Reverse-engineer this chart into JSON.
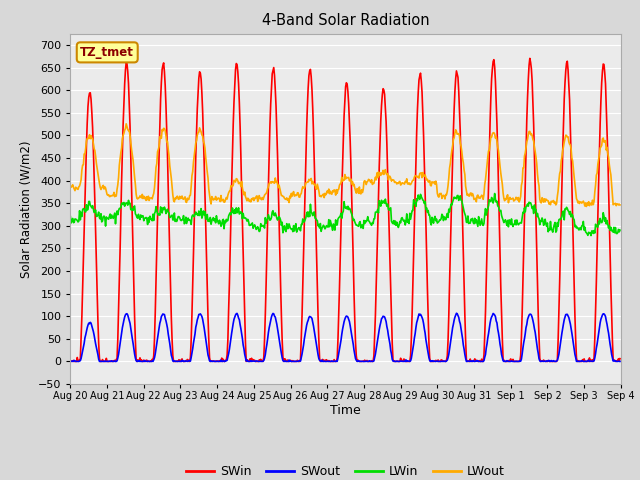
{
  "title": "4-Band Solar Radiation",
  "xlabel": "Time",
  "ylabel": "Solar Radiation (W/m2)",
  "annotation": "TZ_tmet",
  "ylim": [
    -50,
    725
  ],
  "yticks": [
    -50,
    0,
    50,
    100,
    150,
    200,
    250,
    300,
    350,
    400,
    450,
    500,
    550,
    600,
    650,
    700
  ],
  "colors": {
    "SWin": "#ff0000",
    "SWout": "#0000ff",
    "LWin": "#00dd00",
    "LWout": "#ffaa00"
  },
  "line_width": 1.2,
  "bg_color": "#d8d8d8",
  "plot_bg_color": "#ebebeb",
  "grid_color": "#ffffff",
  "annotation_bg": "#ffff99",
  "annotation_border": "#cc8800",
  "swin_peaks": [
    600,
    660,
    655,
    640,
    655,
    650,
    645,
    615,
    605,
    635,
    640,
    665,
    665,
    660,
    655
  ],
  "swout_peaks": [
    85,
    105,
    105,
    105,
    105,
    105,
    100,
    100,
    100,
    105,
    105,
    105,
    105,
    105,
    105
  ],
  "lwin_base": [
    315,
    320,
    315,
    310,
    308,
    295,
    295,
    300,
    308,
    315,
    315,
    308,
    305,
    298,
    285
  ],
  "lwin_peak_add": [
    30,
    30,
    20,
    20,
    25,
    30,
    35,
    40,
    50,
    50,
    50,
    50,
    45,
    35,
    30
  ],
  "lwout_night": [
    385,
    365,
    360,
    358,
    358,
    360,
    368,
    375,
    398,
    395,
    368,
    362,
    358,
    352,
    348
  ],
  "lwout_day_peak": [
    500,
    520,
    515,
    515,
    400,
    400,
    400,
    408,
    418,
    412,
    508,
    505,
    505,
    498,
    490
  ],
  "tick_labels": [
    "Aug 20",
    "Aug 21",
    "Aug 22",
    "Aug 23",
    "Aug 24",
    "Aug 25",
    "Aug 26",
    "Aug 27",
    "Aug 28",
    "Aug 29",
    "Aug 30",
    "Aug 31",
    "Sep 1",
    "Sep 2",
    "Sep 3",
    "Sep 4"
  ]
}
